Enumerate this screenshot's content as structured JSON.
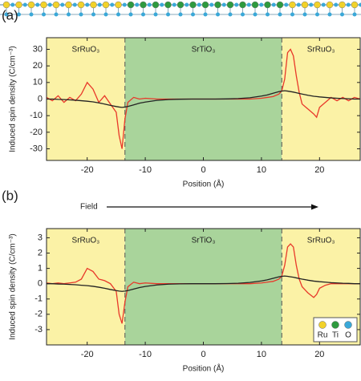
{
  "chart_data": [
    {
      "type": "line",
      "panel_label": "(a)",
      "xlabel": "Position (Å)",
      "ylabel": "Induced spin density (C/cm⁻³)",
      "xlim": [
        -27,
        27
      ],
      "ylim": [
        -37,
        37
      ],
      "xticks": [
        -20,
        -10,
        0,
        10,
        20
      ],
      "yticks": [
        -30,
        -20,
        -10,
        0,
        10,
        20,
        30
      ],
      "regions": [
        {
          "label": "SrRuO₃",
          "from": -27,
          "to": -13.5,
          "color": "#fbf2a6"
        },
        {
          "label": "SrTiO₃",
          "from": -13.5,
          "to": 13.5,
          "color": "#a9d49b"
        },
        {
          "label": "SrRuO₃",
          "from": 13.5,
          "to": 27,
          "color": "#fbf2a6"
        }
      ],
      "x": [
        -27,
        -26,
        -25,
        -24,
        -23,
        -22,
        -21,
        -20,
        -19,
        -18,
        -17,
        -16,
        -15,
        -14.5,
        -14,
        -13.5,
        -13,
        -12,
        -11,
        -10,
        -8,
        -6,
        -4,
        -2,
        0,
        2,
        4,
        6,
        8,
        10,
        11,
        12,
        13,
        13.5,
        14,
        14.5,
        15,
        15.5,
        16,
        16.5,
        17,
        18,
        19,
        19.5,
        20,
        21,
        22,
        23,
        24,
        25,
        26,
        27
      ],
      "series": [
        {
          "color": "#e8382a",
          "values": [
            1,
            -1,
            2,
            -2,
            1,
            -1,
            3,
            10,
            6,
            -2,
            2,
            -3,
            -8,
            -22,
            -30,
            -12,
            -2,
            1,
            0,
            0.5,
            0,
            0,
            0,
            0,
            0,
            0,
            0,
            0,
            0,
            0.5,
            1,
            1.5,
            3,
            5,
            12,
            28,
            30,
            26,
            14,
            4,
            -3,
            -6,
            -9,
            -11,
            -5,
            -2,
            1,
            -1,
            1,
            -1,
            1,
            0
          ]
        },
        {
          "color": "#222222",
          "values": [
            0,
            0,
            -0.2,
            -0.3,
            -0.5,
            -0.7,
            -1,
            -1.3,
            -1.7,
            -2.3,
            -3,
            -3.8,
            -4.5,
            -4.8,
            -5,
            -4.8,
            -4.5,
            -3.5,
            -2.5,
            -1.8,
            -0.8,
            -0.3,
            -0.1,
            0,
            0,
            0,
            0.1,
            0.3,
            0.8,
            1.8,
            2.5,
            3.5,
            4.5,
            4.8,
            5,
            4.8,
            4.5,
            4.2,
            3.8,
            3.4,
            3,
            2.3,
            1.7,
            1.5,
            1.3,
            1,
            0.7,
            0.5,
            0.3,
            0.2,
            0,
            0
          ]
        }
      ]
    },
    {
      "type": "line",
      "panel_label": "(b)",
      "xlabel": "Position (Å)",
      "ylabel": "Induced spin density (C/cm⁻³)",
      "annotation": "Field",
      "xlim": [
        -27,
        27
      ],
      "ylim": [
        -4,
        3.6
      ],
      "xticks": [
        -20,
        -10,
        0,
        10,
        20
      ],
      "yticks": [
        -3,
        -2,
        -1,
        0,
        1,
        2,
        3
      ],
      "regions": [
        {
          "label": "SrRuO₃",
          "from": -27,
          "to": -13.5,
          "color": "#fbf2a6"
        },
        {
          "label": "SrTiO₃",
          "from": -13.5,
          "to": 13.5,
          "color": "#a9d49b"
        },
        {
          "label": "SrRuO₃",
          "from": 13.5,
          "to": 27,
          "color": "#fbf2a6"
        }
      ],
      "x": [
        -27,
        -26,
        -25,
        -24,
        -23,
        -22,
        -21,
        -20,
        -19,
        -18,
        -17,
        -16,
        -15,
        -14.5,
        -14,
        -13.5,
        -13,
        -12,
        -11,
        -10,
        -8,
        -6,
        -4,
        -2,
        0,
        2,
        4,
        6,
        8,
        10,
        11,
        12,
        13,
        13.5,
        14,
        14.5,
        15,
        15.5,
        16,
        16.5,
        17,
        18,
        19,
        19.5,
        20,
        21,
        22,
        23,
        24,
        25,
        26,
        27
      ],
      "series": [
        {
          "color": "#e8382a",
          "values": [
            0.05,
            0,
            0.05,
            0,
            0.05,
            0.1,
            0.3,
            1,
            0.8,
            0.3,
            0.2,
            0,
            -0.5,
            -2,
            -2.6,
            -1.2,
            -0.2,
            0.1,
            0,
            0.05,
            0,
            0,
            0,
            0,
            0,
            0,
            0,
            0,
            0,
            0.05,
            0.1,
            0.15,
            0.3,
            0.5,
            1.2,
            2.4,
            2.6,
            2.4,
            1.2,
            0.3,
            -0.2,
            -0.6,
            -0.9,
            -0.7,
            -0.3,
            -0.1,
            0,
            0,
            0,
            0,
            0,
            0
          ]
        },
        {
          "color": "#222222",
          "values": [
            0,
            0,
            -0.02,
            -0.03,
            -0.05,
            -0.07,
            -0.1,
            -0.13,
            -0.17,
            -0.23,
            -0.3,
            -0.38,
            -0.45,
            -0.48,
            -0.5,
            -0.48,
            -0.45,
            -0.35,
            -0.25,
            -0.18,
            -0.08,
            -0.03,
            -0.01,
            0,
            0,
            0,
            0.01,
            0.03,
            0.08,
            0.18,
            0.25,
            0.35,
            0.45,
            0.48,
            0.5,
            0.48,
            0.45,
            0.42,
            0.38,
            0.34,
            0.3,
            0.23,
            0.17,
            0.15,
            0.13,
            0.1,
            0.07,
            0.05,
            0.03,
            0.02,
            0,
            0
          ]
        }
      ],
      "legend": {
        "position": "lower right",
        "items": [
          {
            "label": "Ru",
            "color": "#f2d22a"
          },
          {
            "label": "Ti",
            "color": "#2e9a3e"
          },
          {
            "label": "O",
            "color": "#3aa8d8"
          }
        ]
      }
    }
  ]
}
